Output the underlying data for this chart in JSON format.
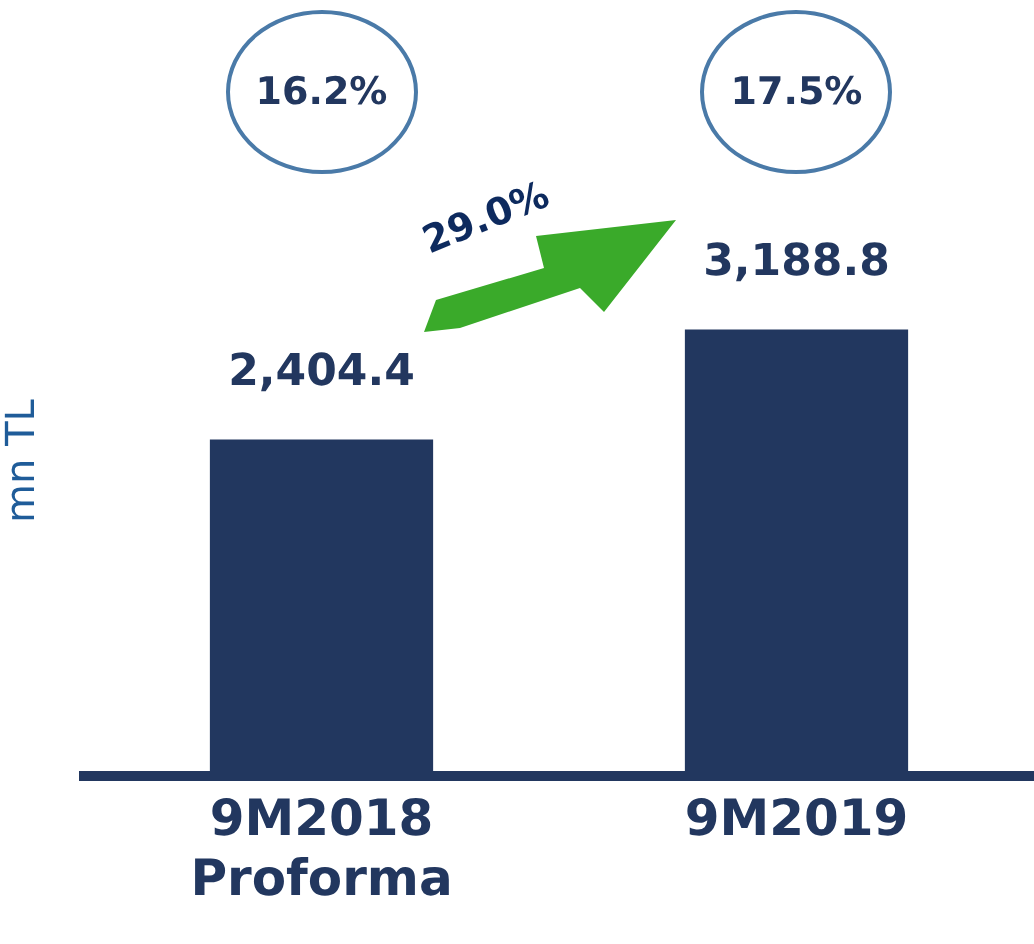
{
  "chart_data": {
    "type": "bar",
    "ylabel": "mn TL",
    "categories": [
      "9M2018 Proforma",
      "9M2019"
    ],
    "values": [
      2404.4,
      3188.8
    ],
    "color": "#22375f",
    "value_labels": [
      "2,404.4",
      "3,188.8"
    ],
    "grid": false,
    "legend": false,
    "tick_labels": "x",
    "annotations": [
      "16.2%",
      "17.5%",
      "29.0%"
    ]
  }
}
